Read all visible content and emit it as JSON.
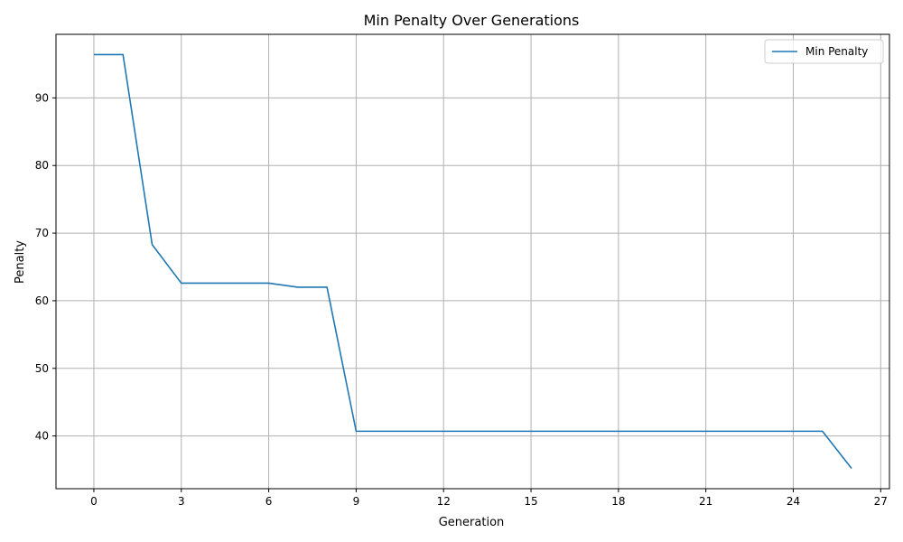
{
  "chart_data": {
    "type": "line",
    "title": "Min Penalty Over Generations",
    "xlabel": "Generation",
    "ylabel": "Penalty",
    "xlim": [
      -1.3,
      27.3
    ],
    "ylim": [
      32.2,
      99.4
    ],
    "xticks": [
      0,
      3,
      6,
      9,
      12,
      15,
      18,
      21,
      24,
      27
    ],
    "yticks": [
      40,
      50,
      60,
      70,
      80,
      90
    ],
    "grid": true,
    "legend_position": "top-right",
    "series": [
      {
        "name": "Min Penalty",
        "color": "#1f77b4",
        "x": [
          0,
          1,
          2,
          3,
          4,
          5,
          6,
          7,
          8,
          9,
          10,
          11,
          12,
          13,
          14,
          15,
          16,
          17,
          18,
          19,
          20,
          21,
          22,
          23,
          24,
          25,
          26
        ],
        "y": [
          96.4,
          96.4,
          68.3,
          62.6,
          62.6,
          62.6,
          62.6,
          62.0,
          62.0,
          40.7,
          40.7,
          40.7,
          40.7,
          40.7,
          40.7,
          40.7,
          40.7,
          40.7,
          40.7,
          40.7,
          40.7,
          40.7,
          40.7,
          40.7,
          40.7,
          40.7,
          35.2
        ]
      }
    ]
  }
}
